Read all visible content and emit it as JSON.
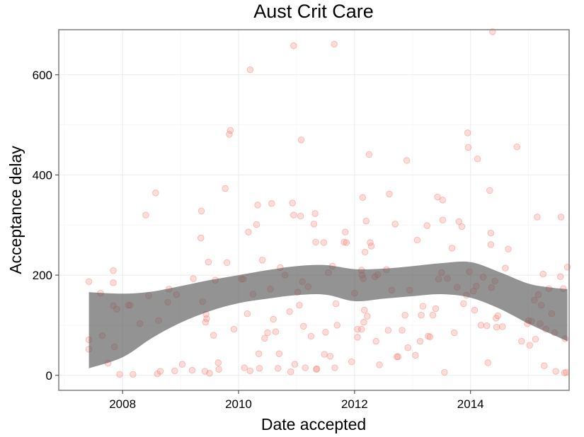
{
  "chart_data": {
    "type": "scatter",
    "title": "Aust Crit Care",
    "xlabel": "Date accepted",
    "ylabel": "Acceptance delay",
    "xlim": [
      2006.9,
      2015.7
    ],
    "ylim": [
      -30,
      690
    ],
    "x_ticks": [
      2008,
      2010,
      2012,
      2014
    ],
    "y_ticks": [
      0,
      200,
      400,
      600
    ],
    "grid": true,
    "point_color": "#f8766d",
    "band_color": "#595959",
    "points": [
      [
        2007.42,
        187
      ],
      [
        2007.42,
        71
      ],
      [
        2007.42,
        52
      ],
      [
        2007.62,
        164
      ],
      [
        2007.65,
        79
      ],
      [
        2007.75,
        24
      ],
      [
        2007.84,
        209
      ],
      [
        2007.84,
        185
      ],
      [
        2007.84,
        139
      ],
      [
        2007.86,
        57
      ],
      [
        2007.9,
        132
      ],
      [
        2007.95,
        2
      ],
      [
        2008.1,
        140
      ],
      [
        2008.13,
        140
      ],
      [
        2008.18,
        2
      ],
      [
        2008.3,
        103
      ],
      [
        2008.4,
        320
      ],
      [
        2008.45,
        159
      ],
      [
        2008.57,
        364
      ],
      [
        2008.6,
        3
      ],
      [
        2008.62,
        109
      ],
      [
        2008.65,
        8
      ],
      [
        2008.78,
        146
      ],
      [
        2008.8,
        172
      ],
      [
        2008.9,
        9
      ],
      [
        2008.93,
        161
      ],
      [
        2009.03,
        22
      ],
      [
        2009.2,
        10
      ],
      [
        2009.22,
        193
      ],
      [
        2009.35,
        274
      ],
      [
        2009.36,
        328
      ],
      [
        2009.38,
        147
      ],
      [
        2009.42,
        8
      ],
      [
        2009.43,
        106
      ],
      [
        2009.44,
        122
      ],
      [
        2009.45,
        113
      ],
      [
        2009.48,
        226
      ],
      [
        2009.5,
        4
      ],
      [
        2009.57,
        80
      ],
      [
        2009.6,
        190
      ],
      [
        2009.65,
        25
      ],
      [
        2009.66,
        12
      ],
      [
        2009.77,
        373
      ],
      [
        2009.8,
        225
      ],
      [
        2009.84,
        481
      ],
      [
        2009.86,
        489
      ],
      [
        2009.92,
        92
      ],
      [
        2010.05,
        192
      ],
      [
        2010.08,
        192
      ],
      [
        2010.1,
        15
      ],
      [
        2010.15,
        123
      ],
      [
        2010.17,
        286
      ],
      [
        2010.2,
        9
      ],
      [
        2010.2,
        610
      ],
      [
        2010.25,
        162
      ],
      [
        2010.31,
        301
      ],
      [
        2010.33,
        340
      ],
      [
        2010.35,
        43
      ],
      [
        2010.36,
        14
      ],
      [
        2010.41,
        230
      ],
      [
        2010.45,
        74
      ],
      [
        2010.5,
        85
      ],
      [
        2010.55,
        172
      ],
      [
        2010.57,
        343
      ],
      [
        2010.6,
        112
      ],
      [
        2010.64,
        87
      ],
      [
        2010.68,
        14
      ],
      [
        2010.7,
        43
      ],
      [
        2010.72,
        215
      ],
      [
        2010.8,
        200
      ],
      [
        2010.88,
        127
      ],
      [
        2010.9,
        7
      ],
      [
        2010.93,
        344
      ],
      [
        2010.95,
        320
      ],
      [
        2010.95,
        658
      ],
      [
        2010.97,
        22
      ],
      [
        2011.02,
        166
      ],
      [
        2011.05,
        140
      ],
      [
        2011.07,
        318
      ],
      [
        2011.08,
        470
      ],
      [
        2011.1,
        187
      ],
      [
        2011.12,
        98
      ],
      [
        2011.15,
        15
      ],
      [
        2011.2,
        177
      ],
      [
        2011.25,
        78
      ],
      [
        2011.3,
        302
      ],
      [
        2011.32,
        323
      ],
      [
        2011.33,
        266
      ],
      [
        2011.34,
        12
      ],
      [
        2011.35,
        13
      ],
      [
        2011.47,
        265
      ],
      [
        2011.48,
        42
      ],
      [
        2011.5,
        86
      ],
      [
        2011.55,
        205
      ],
      [
        2011.58,
        38
      ],
      [
        2011.62,
        218
      ],
      [
        2011.65,
        661
      ],
      [
        2011.66,
        15
      ],
      [
        2011.68,
        143
      ],
      [
        2011.7,
        100
      ],
      [
        2011.82,
        266
      ],
      [
        2011.84,
        286
      ],
      [
        2011.86,
        265
      ],
      [
        2011.95,
        27
      ],
      [
        2012.0,
        164
      ],
      [
        2012.05,
        92
      ],
      [
        2012.05,
        76
      ],
      [
        2012.12,
        210
      ],
      [
        2012.12,
        92
      ],
      [
        2012.13,
        200
      ],
      [
        2012.14,
        355
      ],
      [
        2012.15,
        193
      ],
      [
        2012.16,
        106
      ],
      [
        2012.17,
        130
      ],
      [
        2012.18,
        246
      ],
      [
        2012.2,
        308
      ],
      [
        2012.22,
        118
      ],
      [
        2012.25,
        441
      ],
      [
        2012.27,
        265
      ],
      [
        2012.29,
        258
      ],
      [
        2012.35,
        197
      ],
      [
        2012.37,
        68
      ],
      [
        2012.4,
        201
      ],
      [
        2012.43,
        21
      ],
      [
        2012.55,
        211
      ],
      [
        2012.58,
        90
      ],
      [
        2012.6,
        362
      ],
      [
        2012.64,
        170
      ],
      [
        2012.7,
        302
      ],
      [
        2012.73,
        37
      ],
      [
        2012.75,
        37
      ],
      [
        2012.82,
        90
      ],
      [
        2012.87,
        120
      ],
      [
        2012.9,
        429
      ],
      [
        2012.92,
        55
      ],
      [
        2012.95,
        170
      ],
      [
        2013.05,
        40
      ],
      [
        2013.08,
        270
      ],
      [
        2013.13,
        68
      ],
      [
        2013.15,
        120
      ],
      [
        2013.18,
        138
      ],
      [
        2013.25,
        299
      ],
      [
        2013.27,
        78
      ],
      [
        2013.3,
        77
      ],
      [
        2013.35,
        120
      ],
      [
        2013.4,
        133
      ],
      [
        2013.43,
        356
      ],
      [
        2013.45,
        192
      ],
      [
        2013.5,
        205
      ],
      [
        2013.52,
        350
      ],
      [
        2013.52,
        310
      ],
      [
        2013.55,
        6
      ],
      [
        2013.6,
        193
      ],
      [
        2013.68,
        254
      ],
      [
        2013.72,
        85
      ],
      [
        2013.77,
        176
      ],
      [
        2013.8,
        307
      ],
      [
        2013.85,
        297
      ],
      [
        2013.88,
        143
      ],
      [
        2013.93,
        160
      ],
      [
        2013.95,
        484
      ],
      [
        2013.96,
        455
      ],
      [
        2013.98,
        207
      ],
      [
        2014.05,
        168
      ],
      [
        2014.07,
        130
      ],
      [
        2014.1,
        178
      ],
      [
        2014.12,
        432
      ],
      [
        2014.18,
        100
      ],
      [
        2014.22,
        196
      ],
      [
        2014.28,
        99
      ],
      [
        2014.3,
        25
      ],
      [
        2014.33,
        369
      ],
      [
        2014.35,
        261
      ],
      [
        2014.35,
        284
      ],
      [
        2014.36,
        175
      ],
      [
        2014.38,
        686
      ],
      [
        2014.42,
        188
      ],
      [
        2014.44,
        114
      ],
      [
        2014.45,
        96
      ],
      [
        2014.47,
        119
      ],
      [
        2014.55,
        97
      ],
      [
        2014.6,
        214
      ],
      [
        2014.65,
        252
      ],
      [
        2014.8,
        456
      ],
      [
        2014.88,
        68
      ],
      [
        2014.98,
        103
      ],
      [
        2015.0,
        109
      ],
      [
        2015.02,
        60
      ],
      [
        2015.05,
        108
      ],
      [
        2015.1,
        150
      ],
      [
        2015.12,
        72
      ],
      [
        2015.15,
        316
      ],
      [
        2015.17,
        161
      ],
      [
        2015.2,
        103
      ],
      [
        2015.22,
        140
      ],
      [
        2015.25,
        202
      ],
      [
        2015.27,
        19
      ],
      [
        2015.3,
        92
      ],
      [
        2015.35,
        173
      ],
      [
        2015.4,
        123
      ],
      [
        2015.45,
        85
      ],
      [
        2015.47,
        8
      ],
      [
        2015.55,
        197
      ],
      [
        2015.56,
        316
      ],
      [
        2015.6,
        173
      ],
      [
        2015.62,
        5
      ],
      [
        2015.63,
        73
      ],
      [
        2015.65,
        6
      ],
      [
        2015.67,
        216
      ]
    ],
    "band": {
      "x": [
        2007.42,
        2008.0,
        2008.5,
        2009.0,
        2009.5,
        2010.0,
        2010.5,
        2011.0,
        2011.5,
        2012.0,
        2012.5,
        2013.0,
        2013.5,
        2014.0,
        2014.5,
        2015.0,
        2015.4,
        2015.67
      ],
      "upper": [
        166,
        163,
        167,
        178,
        190,
        200,
        210,
        218,
        220,
        212,
        213,
        218,
        224,
        226,
        206,
        183,
        175,
        172
      ],
      "lower": [
        14,
        36,
        74,
        105,
        128,
        144,
        153,
        160,
        161,
        148,
        153,
        158,
        162,
        155,
        133,
        103,
        82,
        68
      ]
    }
  }
}
